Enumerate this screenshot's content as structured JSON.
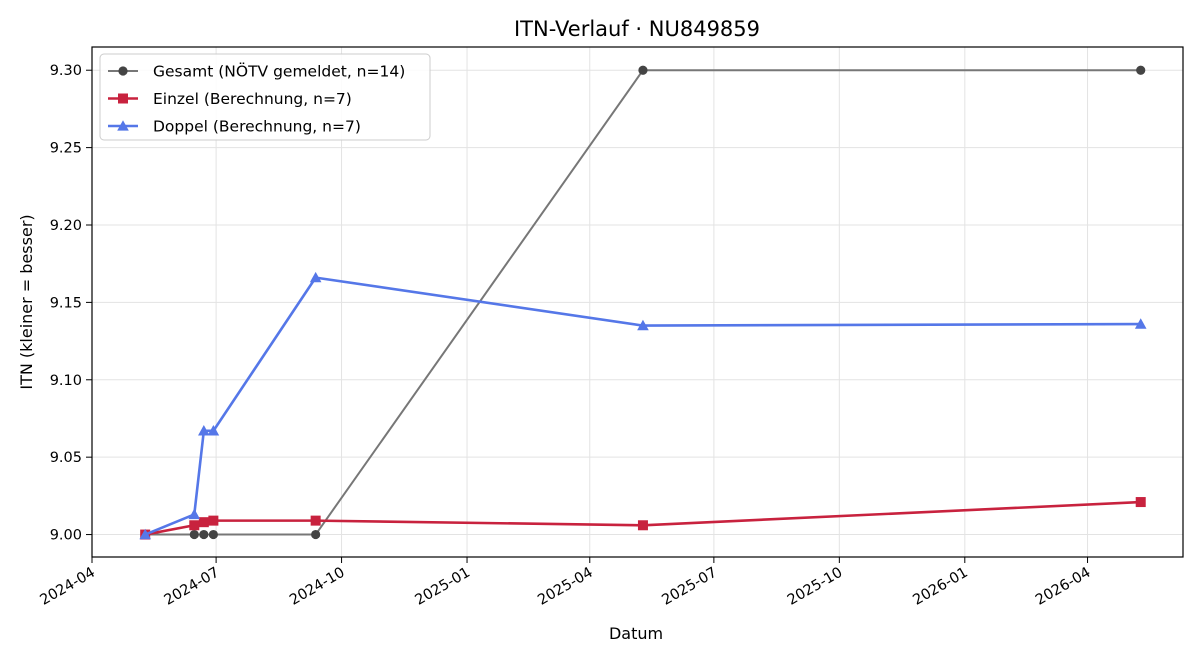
{
  "chart_data": {
    "type": "line",
    "title": "ITN-Verlauf · NU849859",
    "xlabel": "Datum",
    "ylabel": "ITN  (kleiner = besser)",
    "x_axis_type": "date",
    "xlim": [
      "2024-04-01",
      "2026-06-10"
    ],
    "ylim": [
      8.9855,
      9.315
    ],
    "x_ticks": [
      "2024-04",
      "2024-07",
      "2024-10",
      "2025-01",
      "2025-04",
      "2025-07",
      "2025-10",
      "2026-01",
      "2026-04"
    ],
    "x_tick_dates": [
      "2024-04-01",
      "2024-07-01",
      "2024-10-01",
      "2025-01-01",
      "2025-04-01",
      "2025-07-01",
      "2025-10-01",
      "2026-01-01",
      "2026-04-01"
    ],
    "y_ticks": [
      "9.00",
      "9.05",
      "9.10",
      "9.15",
      "9.20",
      "9.25",
      "9.30"
    ],
    "y_tick_values": [
      9.0,
      9.05,
      9.1,
      9.15,
      9.2,
      9.25,
      9.3
    ],
    "grid": true,
    "legend_position": "top-left",
    "series": [
      {
        "name": "Gesamt (NÖTV gemeldet, n=14)",
        "color": "#777777",
        "marker_color": "#444444",
        "marker": "circle",
        "x": [
          "2024-05-10",
          "2024-06-15",
          "2024-06-22",
          "2024-06-29",
          "2024-09-12",
          "2025-05-10",
          "2026-05-10"
        ],
        "y": [
          9.0,
          9.0,
          9.0,
          9.0,
          9.0,
          9.3,
          9.3
        ]
      },
      {
        "name": "Einzel (Berechnung, n=7)",
        "color": "#c8223e",
        "marker_color": "#c8223e",
        "marker": "square",
        "x": [
          "2024-05-10",
          "2024-06-15",
          "2024-06-22",
          "2024-06-29",
          "2024-09-12",
          "2025-05-10",
          "2026-05-10"
        ],
        "y": [
          9.0,
          9.006,
          9.008,
          9.009,
          9.009,
          9.006,
          9.021
        ]
      },
      {
        "name": "Doppel (Berechnung, n=7)",
        "color": "#5577e8",
        "marker_color": "#5577e8",
        "marker": "triangle",
        "x": [
          "2024-05-10",
          "2024-06-15",
          "2024-06-22",
          "2024-06-29",
          "2024-09-12",
          "2025-05-10",
          "2026-05-10"
        ],
        "y": [
          9.0,
          9.013,
          9.067,
          9.067,
          9.166,
          9.135,
          9.136
        ]
      }
    ]
  }
}
